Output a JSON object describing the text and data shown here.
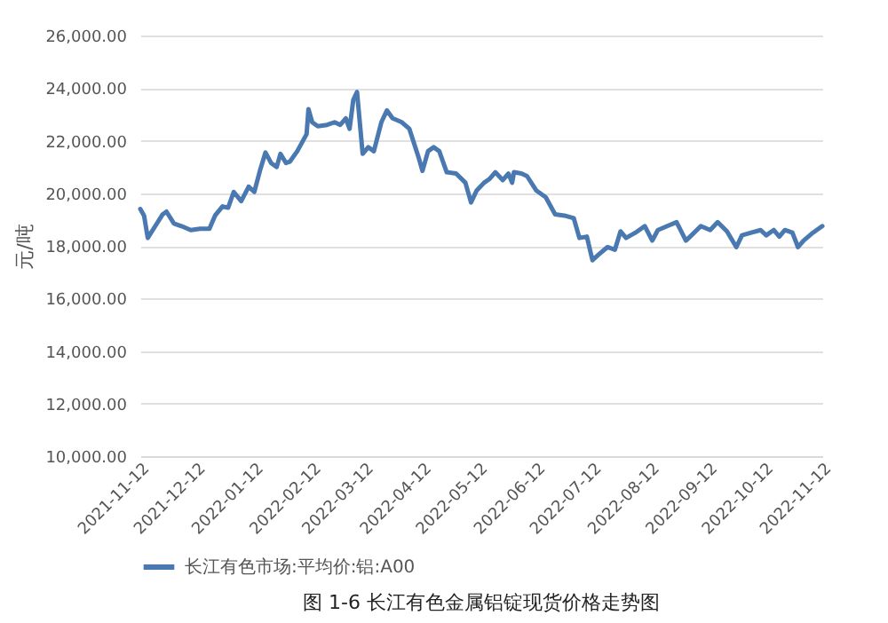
{
  "chart_data": {
    "type": "line",
    "title": "图 1-6 长江有色金属铝锭现货价格走势图",
    "ylabel": "元/吨",
    "legend": "bottom",
    "grid": "y",
    "x": [
      "2021-11-12",
      "2021-11-14",
      "2021-11-16",
      "2021-11-20",
      "2021-11-24",
      "2021-11-26",
      "2021-11-30",
      "2021-12-04",
      "2021-12-09",
      "2021-12-14",
      "2021-12-19",
      "2021-12-22",
      "2021-12-26",
      "2021-12-29",
      "2022-01-01",
      "2022-01-05",
      "2022-01-09",
      "2022-01-12",
      "2022-01-15",
      "2022-01-18",
      "2022-01-21",
      "2022-01-24",
      "2022-01-26",
      "2022-01-29",
      "2022-01-31",
      "2022-02-04",
      "2022-02-09",
      "2022-02-10",
      "2022-02-12",
      "2022-02-15",
      "2022-02-20",
      "2022-02-24",
      "2022-02-27",
      "2022-03-02",
      "2022-03-04",
      "2022-03-06",
      "2022-03-08",
      "2022-03-11",
      "2022-03-14",
      "2022-03-17",
      "2022-03-21",
      "2022-03-24",
      "2022-03-27",
      "2022-04-01",
      "2022-04-05",
      "2022-04-10",
      "2022-04-12",
      "2022-04-15",
      "2022-04-18",
      "2022-04-21",
      "2022-04-25",
      "2022-04-30",
      "2022-05-05",
      "2022-05-08",
      "2022-05-11",
      "2022-05-15",
      "2022-05-18",
      "2022-05-21",
      "2022-05-25",
      "2022-05-28",
      "2022-05-30",
      "2022-05-31",
      "2022-06-04",
      "2022-06-07",
      "2022-06-12",
      "2022-06-17",
      "2022-06-22",
      "2022-06-27",
      "2022-07-02",
      "2022-07-05",
      "2022-07-09",
      "2022-07-12",
      "2022-07-15",
      "2022-07-20",
      "2022-07-24",
      "2022-07-27",
      "2022-07-30",
      "2022-08-04",
      "2022-08-09",
      "2022-08-13",
      "2022-08-16",
      "2022-08-21",
      "2022-08-26",
      "2022-08-31",
      "2022-09-03",
      "2022-09-08",
      "2022-09-13",
      "2022-09-17",
      "2022-09-22",
      "2022-09-27",
      "2022-09-30",
      "2022-10-05",
      "2022-10-10",
      "2022-10-13",
      "2022-10-17",
      "2022-10-20",
      "2022-10-23",
      "2022-10-27",
      "2022-10-30",
      "2022-11-02",
      "2022-11-07",
      "2022-11-12"
    ],
    "series": [
      {
        "name": "长江有色市场:平均价:铝:A00",
        "color": "#4a78b0",
        "values": [
          19400,
          19150,
          18300,
          18750,
          19200,
          19300,
          18850,
          18750,
          18600,
          18650,
          18650,
          19150,
          19500,
          19450,
          20050,
          19700,
          20250,
          20050,
          20850,
          21550,
          21150,
          21000,
          21500,
          21150,
          21200,
          21600,
          22250,
          23200,
          22700,
          22550,
          22600,
          22700,
          22600,
          22850,
          22450,
          23550,
          23850,
          21500,
          21750,
          21600,
          22700,
          23150,
          22850,
          22700,
          22450,
          21350,
          20850,
          21600,
          21750,
          21600,
          20800,
          20750,
          20400,
          19650,
          20100,
          20400,
          20550,
          20800,
          20500,
          20750,
          20400,
          20800,
          20750,
          20650,
          20100,
          19850,
          19200,
          19150,
          19050,
          18300,
          18350,
          17450,
          17650,
          17950,
          17850,
          18550,
          18300,
          18500,
          18750,
          18200,
          18600,
          18750,
          18900,
          18200,
          18400,
          18750,
          18600,
          18900,
          18550,
          17950,
          18400,
          18500,
          18600,
          18400,
          18600,
          18350,
          18600,
          18500,
          17950,
          18200,
          18500,
          18750
        ]
      }
    ],
    "xlim": [
      "2021-11-12",
      "2022-11-12"
    ],
    "xticks": [
      "2021-11-12",
      "2021-12-12",
      "2022-01-12",
      "2022-02-12",
      "2022-03-12",
      "2022-04-12",
      "2022-05-12",
      "2022-06-12",
      "2022-07-12",
      "2022-08-12",
      "2022-09-12",
      "2022-10-12",
      "2022-11-12"
    ],
    "ylim": [
      10000,
      26000
    ],
    "yticks": [
      {
        "value": 10000,
        "label": "10,000.00"
      },
      {
        "value": 12000,
        "label": "12,000.00"
      },
      {
        "value": 14000,
        "label": "14,000.00"
      },
      {
        "value": 16000,
        "label": "16,000.00"
      },
      {
        "value": 18000,
        "label": "18,000.00"
      },
      {
        "value": 20000,
        "label": "20,000.00"
      },
      {
        "value": 22000,
        "label": "22,000.00"
      },
      {
        "value": 24000,
        "label": "24,000.00"
      },
      {
        "value": 26000,
        "label": "26,000.00"
      }
    ]
  }
}
